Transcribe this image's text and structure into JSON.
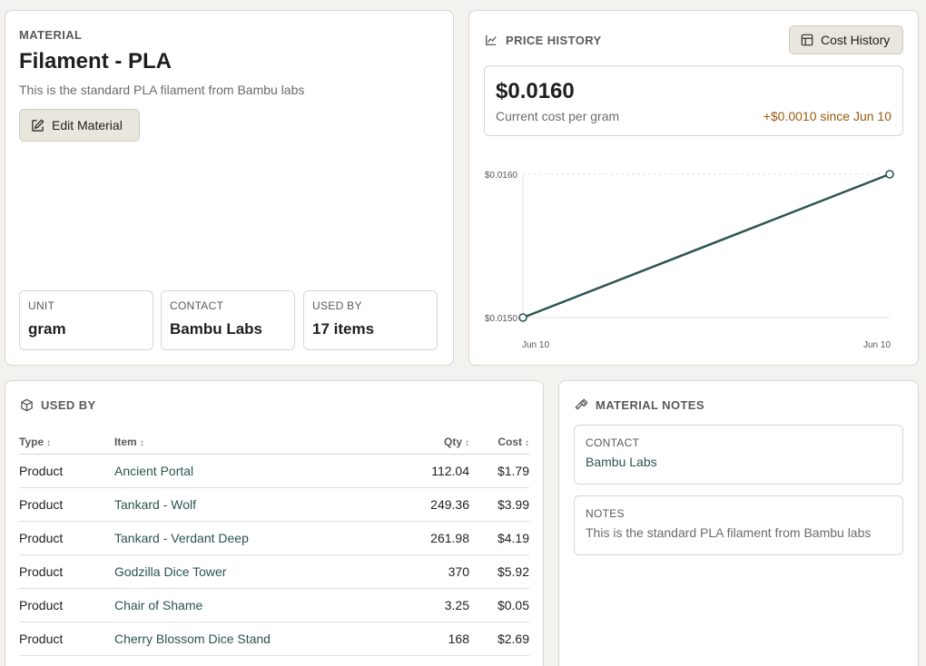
{
  "material": {
    "eyebrow": "MATERIAL",
    "title": "Filament - PLA",
    "description": "This is the standard PLA filament from Bambu labs",
    "edit_label": "Edit Material",
    "stats": [
      {
        "label": "UNIT",
        "value": "gram"
      },
      {
        "label": "CONTACT",
        "value": "Bambu Labs"
      },
      {
        "label": "USED BY",
        "value": "17 items"
      }
    ]
  },
  "price_history": {
    "eyebrow": "PRICE HISTORY",
    "cost_history_label": "Cost History",
    "current_cost": "$0.0160",
    "current_cost_label": "Current cost per gram",
    "change": "+$0.0010 since Jun 10",
    "accent_color": "#9a5a0e"
  },
  "chart_data": {
    "type": "line",
    "x": [
      "Jun 10",
      "Jun 10"
    ],
    "series": [
      {
        "values": [
          0.015,
          0.016
        ]
      }
    ],
    "ytick_labels": [
      "$0.0160",
      "$0.0150"
    ],
    "ylim": [
      0.015,
      0.016
    ],
    "line_color": "#2a5452",
    "grid": true
  },
  "used_by": {
    "eyebrow": "USED BY",
    "columns": {
      "type": "Type",
      "item": "Item",
      "qty": "Qty",
      "cost": "Cost"
    },
    "rows": [
      {
        "type": "Product",
        "item": "Ancient Portal",
        "qty": "112.04",
        "cost": "$1.79"
      },
      {
        "type": "Product",
        "item": "Tankard - Wolf",
        "qty": "249.36",
        "cost": "$3.99"
      },
      {
        "type": "Product",
        "item": "Tankard - Verdant Deep",
        "qty": "261.98",
        "cost": "$4.19"
      },
      {
        "type": "Product",
        "item": "Godzilla Dice Tower",
        "qty": "370",
        "cost": "$5.92"
      },
      {
        "type": "Product",
        "item": "Chair of Shame",
        "qty": "3.25",
        "cost": "$0.05"
      },
      {
        "type": "Product",
        "item": "Cherry Blossom Dice Stand",
        "qty": "168",
        "cost": "$2.69"
      }
    ]
  },
  "notes": {
    "eyebrow": "MATERIAL NOTES",
    "contact_label": "CONTACT",
    "contact_value": "Bambu Labs",
    "notes_label": "NOTES",
    "notes_value": "This is the standard PLA filament from Bambu labs"
  }
}
